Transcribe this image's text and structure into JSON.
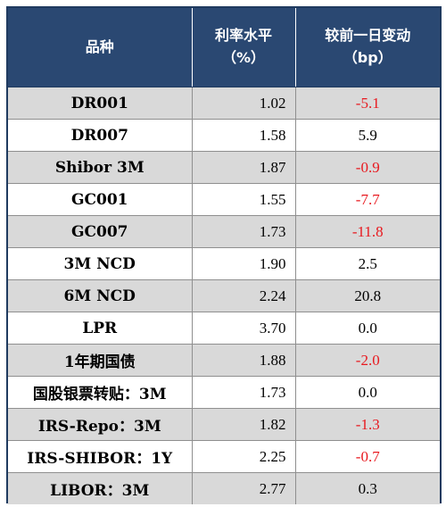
{
  "header": {
    "col_product": "品种",
    "col_rate_line1": "利率水平",
    "col_rate_line2": "（%）",
    "col_change_line1": "较前一日变动",
    "col_change_line2": "（bp）"
  },
  "colors": {
    "header_bg": "#2a4872",
    "shaded_row_bg": "#d9d9d9",
    "negative_change": "#e8191f",
    "positive_change": "#000000"
  },
  "rows": [
    {
      "name": "DR001",
      "rate": "1.02",
      "change": "-5.1"
    },
    {
      "name": "DR007",
      "rate": "1.58",
      "change": "5.9"
    },
    {
      "name": "Shibor 3M",
      "rate": "1.87",
      "change": "-0.9"
    },
    {
      "name": "GC001",
      "rate": "1.55",
      "change": "-7.7"
    },
    {
      "name": "GC007",
      "rate": "1.73",
      "change": "-11.8"
    },
    {
      "name": "3M NCD",
      "rate": "1.90",
      "change": "2.5"
    },
    {
      "name": "6M NCD",
      "rate": "2.24",
      "change": "20.8"
    },
    {
      "name": "LPR",
      "rate": "3.70",
      "change": "0.0"
    },
    {
      "name": "1年期国债",
      "rate": "1.88",
      "change": "-2.0"
    },
    {
      "name": "国股银票转贴：3M",
      "rate": "1.73",
      "change": "0.0"
    },
    {
      "name": "IRS-Repo：3M",
      "rate": "1.82",
      "change": "-1.3"
    },
    {
      "name": "IRS-SHIBOR：1Y",
      "rate": "2.25",
      "change": "-0.7"
    },
    {
      "name": "LIBOR：3M",
      "rate": "2.77",
      "change": "0.3"
    }
  ]
}
